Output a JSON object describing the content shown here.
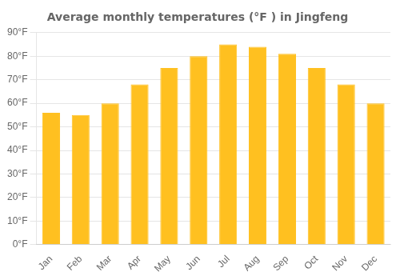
{
  "chart_data": {
    "type": "bar",
    "title": "Average monthly temperatures (°F ) in Jingfeng",
    "categories": [
      "Jan",
      "Feb",
      "Mar",
      "Apr",
      "May",
      "Jun",
      "Jul",
      "Aug",
      "Sep",
      "Oct",
      "Nov",
      "Dec"
    ],
    "values": [
      56,
      55,
      60,
      68,
      75,
      80,
      85,
      84,
      81,
      75,
      68,
      60
    ],
    "color": "#FFC020",
    "ylim": [
      0,
      90
    ],
    "yticks": [
      {
        "value": 0,
        "label": "0°F"
      },
      {
        "value": 10,
        "label": "10°F"
      },
      {
        "value": 20,
        "label": "20°F"
      },
      {
        "value": 30,
        "label": "30°F"
      },
      {
        "value": 40,
        "label": "40°F"
      },
      {
        "value": 50,
        "label": "50°F"
      },
      {
        "value": 60,
        "label": "60°F"
      },
      {
        "value": 70,
        "label": "70°F"
      },
      {
        "value": 80,
        "label": "80°F"
      },
      {
        "value": 90,
        "label": "90°F"
      }
    ],
    "grid": true
  }
}
